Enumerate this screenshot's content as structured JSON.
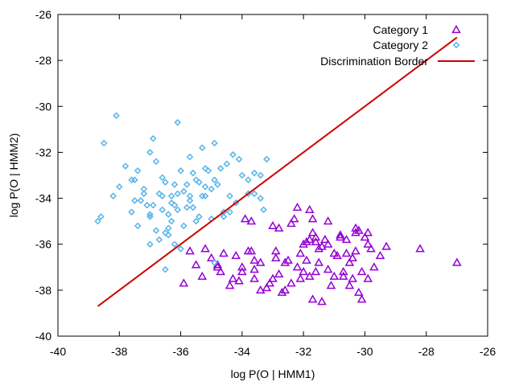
{
  "chart_data": {
    "type": "scatter",
    "title": "",
    "xlabel": "log P(O | HMM1)",
    "ylabel": "log P(O | HMM2)",
    "xlim": [
      -40,
      -26
    ],
    "ylim": [
      -40,
      -26
    ],
    "xticks": [
      -40,
      -38,
      -36,
      -34,
      -32,
      -30,
      -28,
      -26
    ],
    "yticks": [
      -40,
      -38,
      -36,
      -34,
      -32,
      -30,
      -28,
      -26
    ],
    "xtick_labels": [
      "-40",
      "-38",
      "-36",
      "-34",
      "-32",
      "-30",
      "-28",
      "-26"
    ],
    "ytick_labels": [
      "-40",
      "-38",
      "-36",
      "-34",
      "-32",
      "-30",
      "-28",
      "-26"
    ],
    "grid": false,
    "legend_position": "top-right",
    "series": [
      {
        "name": "Category 1",
        "marker": "triangle",
        "color": "#9400d3",
        "points": [
          [
            -27.0,
            -36.8
          ],
          [
            -28.2,
            -36.2
          ],
          [
            -29.5,
            -36.5
          ],
          [
            -29.8,
            -36.2
          ],
          [
            -29.9,
            -35.5
          ],
          [
            -30.0,
            -35.7
          ],
          [
            -30.1,
            -37.2
          ],
          [
            -30.2,
            -35.4
          ],
          [
            -30.3,
            -36.3
          ],
          [
            -30.4,
            -36.6
          ],
          [
            -30.5,
            -36.8
          ],
          [
            -30.5,
            -37.8
          ],
          [
            -30.6,
            -35.8
          ],
          [
            -30.8,
            -35.7
          ],
          [
            -30.9,
            -36.5
          ],
          [
            -31.0,
            -37.4
          ],
          [
            -31.2,
            -36.0
          ],
          [
            -31.4,
            -36.1
          ],
          [
            -31.5,
            -36.8
          ],
          [
            -31.6,
            -37.2
          ],
          [
            -31.7,
            -35.5
          ],
          [
            -31.8,
            -35.8
          ],
          [
            -31.9,
            -35.9
          ],
          [
            -32.0,
            -36.0
          ],
          [
            -32.1,
            -36.4
          ],
          [
            -32.2,
            -37.0
          ],
          [
            -32.4,
            -37.7
          ],
          [
            -32.5,
            -36.7
          ],
          [
            -32.6,
            -38.0
          ],
          [
            -32.8,
            -37.3
          ],
          [
            -33.0,
            -37.5
          ],
          [
            -33.2,
            -37.9
          ],
          [
            -33.4,
            -36.8
          ],
          [
            -33.6,
            -37.1
          ],
          [
            -33.7,
            -35.0
          ],
          [
            -33.8,
            -36.3
          ],
          [
            -34.0,
            -37.2
          ],
          [
            -34.2,
            -36.5
          ],
          [
            -34.4,
            -37.8
          ],
          [
            -34.6,
            -36.4
          ],
          [
            -34.8,
            -37.0
          ],
          [
            -35.0,
            -36.6
          ],
          [
            -35.3,
            -37.4
          ],
          [
            -35.5,
            -36.9
          ],
          [
            -35.7,
            -36.3
          ],
          [
            -35.9,
            -37.7
          ],
          [
            -33.0,
            -35.2
          ],
          [
            -32.3,
            -34.9
          ],
          [
            -31.8,
            -34.5
          ],
          [
            -31.3,
            -35.8
          ],
          [
            -31.2,
            -35.0
          ],
          [
            -30.8,
            -35.6
          ],
          [
            -30.3,
            -35.3
          ],
          [
            -29.9,
            -37.5
          ],
          [
            -29.3,
            -36.1
          ],
          [
            -31.7,
            -38.4
          ],
          [
            -31.4,
            -38.5
          ],
          [
            -30.1,
            -38.4
          ],
          [
            -30.7,
            -37.2
          ],
          [
            -32.0,
            -37.2
          ],
          [
            -32.7,
            -38.1
          ],
          [
            -33.4,
            -38.0
          ],
          [
            -34.1,
            -37.6
          ],
          [
            -34.8,
            -36.9
          ],
          [
            -34.3,
            -37.5
          ],
          [
            -33.1,
            -37.7
          ],
          [
            -32.9,
            -36.3
          ],
          [
            -32.1,
            -37.5
          ],
          [
            -31.9,
            -36.7
          ],
          [
            -31.1,
            -37.8
          ],
          [
            -32.4,
            -35.1
          ],
          [
            -31.6,
            -35.7
          ],
          [
            -31.5,
            -36.2
          ],
          [
            -31.0,
            -36.4
          ],
          [
            -30.7,
            -37.4
          ],
          [
            -30.4,
            -37.5
          ],
          [
            -30.6,
            -36.4
          ],
          [
            -29.7,
            -37.0
          ],
          [
            -29.9,
            -36.0
          ],
          [
            -30.3,
            -35.5
          ],
          [
            -35.2,
            -36.2
          ],
          [
            -34.0,
            -37.0
          ],
          [
            -33.7,
            -36.3
          ],
          [
            -33.6,
            -37.5
          ],
          [
            -33.9,
            -34.9
          ],
          [
            -32.8,
            -35.3
          ],
          [
            -32.2,
            -34.4
          ],
          [
            -31.7,
            -34.9
          ],
          [
            -31.6,
            -35.9
          ],
          [
            -32.9,
            -36.6
          ],
          [
            -32.6,
            -36.8
          ],
          [
            -31.8,
            -37.4
          ],
          [
            -31.2,
            -37.1
          ],
          [
            -30.2,
            -38.1
          ],
          [
            -33.6,
            -36.7
          ],
          [
            -34.7,
            -37.2
          ]
        ]
      },
      {
        "name": "Category 2",
        "marker": "diamond",
        "color": "#56b4e9",
        "points": [
          [
            -38.7,
            -35.0
          ],
          [
            -38.6,
            -34.8
          ],
          [
            -38.5,
            -31.6
          ],
          [
            -38.2,
            -33.9
          ],
          [
            -38.1,
            -30.4
          ],
          [
            -38.0,
            -33.5
          ],
          [
            -37.8,
            -32.6
          ],
          [
            -37.6,
            -34.6
          ],
          [
            -37.5,
            -33.2
          ],
          [
            -37.4,
            -32.8
          ],
          [
            -37.3,
            -34.1
          ],
          [
            -37.2,
            -33.6
          ],
          [
            -37.1,
            -34.3
          ],
          [
            -37.0,
            -32.0
          ],
          [
            -36.9,
            -31.4
          ],
          [
            -36.8,
            -32.4
          ],
          [
            -36.7,
            -33.8
          ],
          [
            -36.6,
            -34.5
          ],
          [
            -36.5,
            -33.3
          ],
          [
            -36.4,
            -35.6
          ],
          [
            -36.3,
            -33.9
          ],
          [
            -36.2,
            -34.3
          ],
          [
            -36.1,
            -30.7
          ],
          [
            -36.0,
            -32.8
          ],
          [
            -35.9,
            -33.7
          ],
          [
            -35.8,
            -34.4
          ],
          [
            -35.7,
            -32.2
          ],
          [
            -35.6,
            -32.9
          ],
          [
            -35.5,
            -33.2
          ],
          [
            -35.4,
            -34.8
          ],
          [
            -35.3,
            -31.8
          ],
          [
            -35.2,
            -33.5
          ],
          [
            -35.0,
            -34.9
          ],
          [
            -34.9,
            -31.6
          ],
          [
            -34.8,
            -33.4
          ],
          [
            -34.6,
            -34.6
          ],
          [
            -34.5,
            -32.5
          ],
          [
            -34.4,
            -33.9
          ],
          [
            -34.3,
            -32.1
          ],
          [
            -34.2,
            -34.2
          ],
          [
            -34.0,
            -33.0
          ],
          [
            -33.8,
            -33.8
          ],
          [
            -33.6,
            -32.9
          ],
          [
            -33.4,
            -33.0
          ],
          [
            -33.3,
            -34.5
          ],
          [
            -33.2,
            -32.3
          ],
          [
            -36.3,
            -35.0
          ],
          [
            -36.0,
            -36.2
          ],
          [
            -35.6,
            -34.4
          ],
          [
            -35.4,
            -33.3
          ],
          [
            -35.2,
            -33.9
          ],
          [
            -34.9,
            -33.2
          ],
          [
            -34.7,
            -32.7
          ],
          [
            -34.4,
            -34.6
          ],
          [
            -34.1,
            -32.3
          ],
          [
            -33.8,
            -33.2
          ],
          [
            -37.0,
            -36.0
          ],
          [
            -36.8,
            -35.4
          ],
          [
            -36.7,
            -35.8
          ],
          [
            -36.5,
            -35.5
          ],
          [
            -36.2,
            -36.0
          ],
          [
            -36.9,
            -34.3
          ],
          [
            -37.2,
            -33.8
          ],
          [
            -37.5,
            -34.1
          ],
          [
            -37.6,
            -33.2
          ],
          [
            -36.6,
            -33.1
          ],
          [
            -36.4,
            -34.7
          ],
          [
            -36.1,
            -33.8
          ],
          [
            -35.9,
            -35.2
          ],
          [
            -35.7,
            -34.1
          ],
          [
            -35.5,
            -35.0
          ],
          [
            -35.3,
            -33.9
          ],
          [
            -35.1,
            -32.8
          ],
          [
            -34.9,
            -36.8
          ],
          [
            -37.4,
            -35.2
          ],
          [
            -37.0,
            -34.8
          ],
          [
            -36.3,
            -34.2
          ],
          [
            -35.8,
            -33.4
          ],
          [
            -36.5,
            -37.1
          ],
          [
            -35.0,
            -33.6
          ],
          [
            -34.6,
            -34.8
          ],
          [
            -33.6,
            -33.8
          ],
          [
            -33.4,
            -34.0
          ],
          [
            -36.2,
            -33.4
          ],
          [
            -35.2,
            -32.7
          ],
          [
            -35.7,
            -33.9
          ],
          [
            -36.4,
            -35.3
          ],
          [
            -37.0,
            -34.7
          ],
          [
            -36.1,
            -34.5
          ],
          [
            -36.6,
            -33.9
          ]
        ]
      },
      {
        "name": "Discrimination Border",
        "marker": "line",
        "color": "#cc0000",
        "points": [
          [
            -38.7,
            -38.7
          ],
          [
            -27.0,
            -27.0
          ]
        ]
      }
    ]
  }
}
